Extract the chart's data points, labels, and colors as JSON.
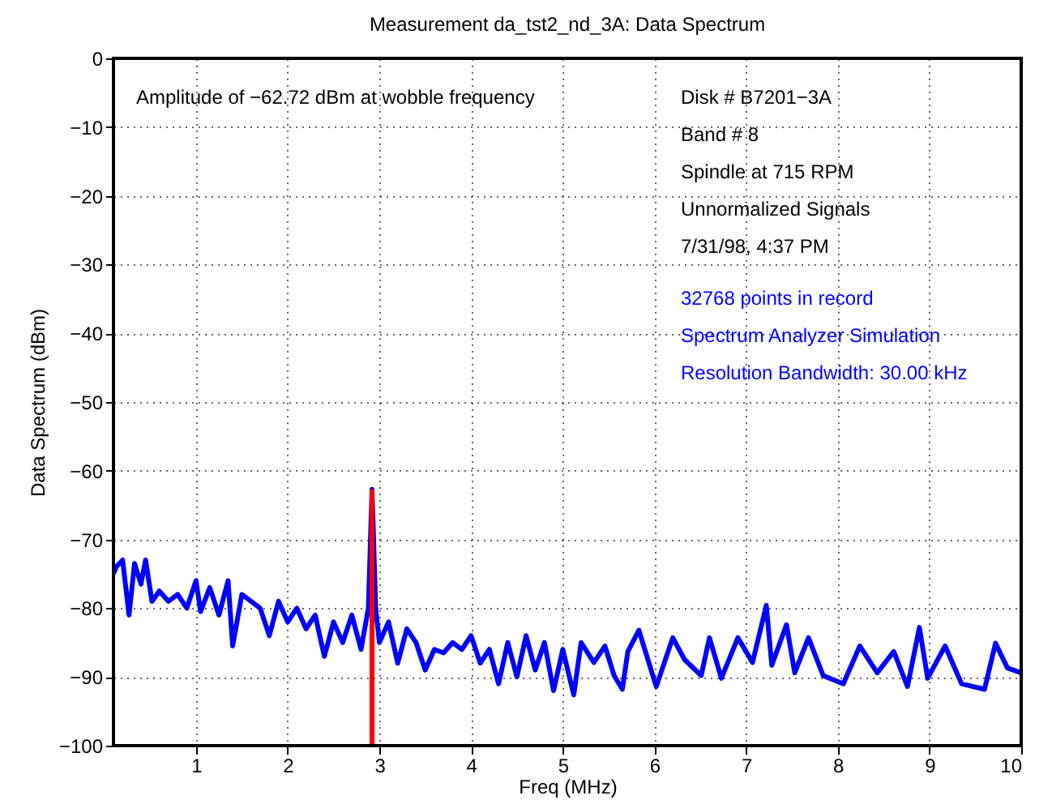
{
  "chart_data": {
    "type": "line",
    "title": "Measurement da_tst2_nd_3A: Data Spectrum",
    "xlabel": "Freq (MHz)",
    "ylabel": "Data Spectrum (dBm)",
    "xlim": [
      0.1,
      10
    ],
    "xticks": [
      1,
      2,
      3,
      4,
      5,
      6,
      7,
      8,
      9,
      10
    ],
    "ylim": [
      -100,
      0
    ],
    "yticks": [
      -100,
      -90,
      -80,
      -70,
      -60,
      -50,
      -40,
      -30,
      -20,
      -10,
      0
    ],
    "grid": true,
    "line_style": "solid",
    "marker": "none",
    "series": [
      {
        "color": "#0000ff",
        "x": [
          0.1,
          0.13,
          0.2,
          0.27,
          0.33,
          0.4,
          0.45,
          0.52,
          0.6,
          0.7,
          0.8,
          0.9,
          1.0,
          1.05,
          1.15,
          1.25,
          1.35,
          1.4,
          1.5,
          1.6,
          1.7,
          1.8,
          1.9,
          2.0,
          2.1,
          2.2,
          2.3,
          2.4,
          2.5,
          2.6,
          2.7,
          2.8,
          2.88,
          2.92,
          2.96,
          3.0,
          3.1,
          3.2,
          3.3,
          3.4,
          3.5,
          3.6,
          3.7,
          3.8,
          3.9,
          4.0,
          4.1,
          4.2,
          4.3,
          4.4,
          4.5,
          4.6,
          4.7,
          4.8,
          4.9,
          5.0,
          5.12,
          5.2,
          5.34,
          5.46,
          5.56,
          5.65,
          5.71,
          5.83,
          6.02,
          6.2,
          6.33,
          6.51,
          6.6,
          6.73,
          6.91,
          7.07,
          7.22,
          7.28,
          7.44,
          7.53,
          7.68,
          7.84,
          8.06,
          8.24,
          8.43,
          8.61,
          8.76,
          8.89,
          8.98,
          9.17,
          9.35,
          9.6,
          9.72,
          9.85,
          10.0
        ],
        "values": [
          -75,
          -74,
          -73,
          -81,
          -73.5,
          -76.5,
          -73,
          -79,
          -77.5,
          -79,
          -78,
          -80,
          -76,
          -80.5,
          -77,
          -81,
          -76,
          -85.5,
          -78,
          -79,
          -80,
          -84,
          -79,
          -82,
          -80,
          -83,
          -81,
          -87,
          -82,
          -85,
          -81,
          -86,
          -80,
          -62.72,
          -80,
          -85,
          -82,
          -88,
          -83,
          -85,
          -89,
          -86,
          -86.5,
          -85,
          -86,
          -84,
          -88,
          -86,
          -91,
          -85,
          -90,
          -84,
          -89,
          -85,
          -92,
          -86,
          -92.6,
          -85,
          -87.9,
          -85.5,
          -89.8,
          -91.8,
          -86.3,
          -83.2,
          -91.4,
          -84.3,
          -87.5,
          -89.8,
          -84.3,
          -90.2,
          -84.3,
          -87.9,
          -79.6,
          -88.3,
          -82.4,
          -89.4,
          -84.3,
          -89.8,
          -91,
          -85.5,
          -89.4,
          -86.3,
          -91.4,
          -82.8,
          -90.2,
          -85.5,
          -91,
          -91.8,
          -85.1,
          -88.7,
          -89.4
        ]
      },
      {
        "color": "#ff0000",
        "x": [
          2.92,
          2.92
        ],
        "values": [
          -100,
          -62.72
        ]
      }
    ],
    "annotations": [
      "Amplitude of −62.72 dBm at wobble frequency",
      "Disk # B7201−3A",
      "Band # 8",
      "Spindle at 715 RPM",
      "Unnormalized Signals",
      "7/31/98, 4:37 PM",
      "32768 points in record",
      "Spectrum Analyzer Simulation",
      "Resolution Bandwidth: 30.00 kHz"
    ]
  }
}
